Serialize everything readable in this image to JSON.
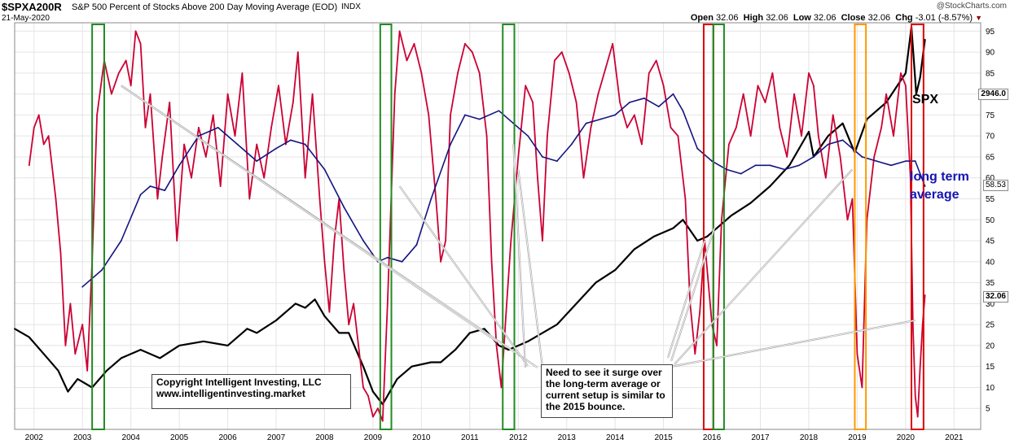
{
  "header": {
    "symbol": "$SPXA200R",
    "description": "S&P 500 Percent of Stocks Above 200 Day Moving Average (EOD)",
    "exchange": "INDX",
    "date": "21-May-2020",
    "brand": "@StockCharts.com",
    "open_label": "Open",
    "open": "32.06",
    "high_label": "High",
    "high": "32.06",
    "low_label": "Low",
    "low": "32.06",
    "close_label": "Close",
    "close": "32.06",
    "chg_label": "Chg",
    "chg": "-3.01 (-8.57%)"
  },
  "annotations": {
    "copyright_line1": "Copyright Intelligent Investing, LLC",
    "copyright_line2": "www.intelligentinvesting.market",
    "note": "Need to see it surge over the long-term average or current setup is similar to the 2015 bounce.",
    "spx_label": "SPX",
    "avg_label_line1": "long term",
    "avg_label_line2": "average"
  },
  "price_tags": {
    "spx": "2946.0",
    "avg": "58.53",
    "pct": "32.06"
  },
  "colors": {
    "pct_line": "#cc0033",
    "spx_line": "#000000",
    "avg_line": "#141480",
    "green_box": "#228b22",
    "red_box": "#dd0000",
    "orange_box": "#ff9900",
    "arrow": "#a8a8a8"
  },
  "chart_data": {
    "type": "line",
    "x_ticks": [
      "2002",
      "2003",
      "2004",
      "2005",
      "2006",
      "2007",
      "2008",
      "2009",
      "2010",
      "2011",
      "2012",
      "2013",
      "2014",
      "2015",
      "2016",
      "2017",
      "2018",
      "2019",
      "2020",
      "2021"
    ],
    "y_ticks": [
      5,
      10,
      15,
      20,
      25,
      30,
      35,
      40,
      45,
      50,
      55,
      60,
      65,
      70,
      75,
      80,
      85,
      90,
      95
    ],
    "ylim": [
      0,
      97
    ],
    "xlim": [
      2001.6,
      2021.55
    ],
    "grid": true,
    "series": [
      {
        "name": "$SPXA200R",
        "x": [
          2001.9,
          2002.0,
          2002.1,
          2002.2,
          2002.3,
          2002.45,
          2002.55,
          2002.65,
          2002.75,
          2002.85,
          2003.0,
          2003.1,
          2003.2,
          2003.3,
          2003.45,
          2003.6,
          2003.75,
          2003.9,
          2004.0,
          2004.1,
          2004.2,
          2004.3,
          2004.4,
          2004.55,
          2004.65,
          2004.8,
          2004.95,
          2005.1,
          2005.25,
          2005.4,
          2005.55,
          2005.7,
          2005.85,
          2006.0,
          2006.15,
          2006.3,
          2006.45,
          2006.6,
          2006.75,
          2006.9,
          2007.05,
          2007.2,
          2007.35,
          2007.45,
          2007.6,
          2007.75,
          2007.9,
          2008.0,
          2008.1,
          2008.2,
          2008.3,
          2008.4,
          2008.5,
          2008.6,
          2008.7,
          2008.8,
          2008.9,
          2009.0,
          2009.1,
          2009.2,
          2009.3,
          2009.45,
          2009.55,
          2009.7,
          2009.85,
          2010.0,
          2010.15,
          2010.3,
          2010.4,
          2010.5,
          2010.6,
          2010.75,
          2010.9,
          2011.05,
          2011.2,
          2011.35,
          2011.45,
          2011.55,
          2011.65,
          2011.75,
          2011.85,
          2012.0,
          2012.15,
          2012.3,
          2012.4,
          2012.5,
          2012.6,
          2012.75,
          2012.9,
          2013.05,
          2013.2,
          2013.35,
          2013.5,
          2013.65,
          2013.8,
          2013.95,
          2014.1,
          2014.25,
          2014.4,
          2014.55,
          2014.7,
          2014.85,
          2015.0,
          2015.15,
          2015.3,
          2015.45,
          2015.55,
          2015.65,
          2015.75,
          2015.85,
          2016.0,
          2016.1,
          2016.2,
          2016.35,
          2016.5,
          2016.65,
          2016.8,
          2016.95,
          2017.1,
          2017.25,
          2017.4,
          2017.55,
          2017.7,
          2017.85,
          2018.0,
          2018.1,
          2018.2,
          2018.35,
          2018.5,
          2018.65,
          2018.8,
          2018.9,
          2019.0,
          2019.1,
          2019.2,
          2019.35,
          2019.5,
          2019.6,
          2019.75,
          2019.9,
          2020.0,
          2020.1,
          2020.15,
          2020.2,
          2020.25,
          2020.3,
          2020.35,
          2020.4
        ],
        "values": [
          63,
          72,
          75,
          68,
          70,
          55,
          42,
          20,
          30,
          18,
          25,
          14,
          40,
          75,
          88,
          80,
          85,
          88,
          82,
          95,
          92,
          72,
          80,
          55,
          65,
          78,
          45,
          68,
          60,
          72,
          65,
          75,
          58,
          80,
          70,
          85,
          55,
          68,
          60,
          72,
          82,
          68,
          78,
          90,
          60,
          80,
          55,
          40,
          28,
          45,
          55,
          38,
          25,
          30,
          20,
          10,
          8,
          3,
          5,
          2,
          30,
          80,
          95,
          88,
          92,
          85,
          75,
          55,
          40,
          45,
          75,
          85,
          92,
          90,
          85,
          70,
          40,
          20,
          10,
          28,
          45,
          65,
          82,
          78,
          60,
          45,
          70,
          88,
          90,
          85,
          78,
          60,
          72,
          80,
          86,
          92,
          78,
          72,
          75,
          68,
          85,
          88,
          82,
          72,
          70,
          55,
          30,
          18,
          28,
          45,
          25,
          20,
          50,
          68,
          72,
          80,
          70,
          82,
          78,
          85,
          72,
          65,
          80,
          70,
          85,
          82,
          70,
          60,
          75,
          65,
          50,
          55,
          18,
          10,
          50,
          65,
          72,
          80,
          70,
          85,
          82,
          60,
          25,
          8,
          3,
          15,
          25,
          32
        ]
      },
      {
        "name": "SPX",
        "x": [
          2001.6,
          2001.9,
          2002.2,
          2002.5,
          2002.7,
          2002.9,
          2003.2,
          2003.5,
          2003.8,
          2004.2,
          2004.6,
          2005.0,
          2005.5,
          2006.0,
          2006.4,
          2006.6,
          2007.0,
          2007.4,
          2007.6,
          2007.8,
          2008.0,
          2008.3,
          2008.5,
          2008.8,
          2009.0,
          2009.2,
          2009.5,
          2009.8,
          2010.2,
          2010.4,
          2010.7,
          2011.0,
          2011.3,
          2011.6,
          2011.8,
          2012.2,
          2012.5,
          2012.8,
          2013.2,
          2013.6,
          2014.0,
          2014.4,
          2014.8,
          2015.2,
          2015.4,
          2015.7,
          2015.9,
          2016.1,
          2016.4,
          2016.8,
          2017.2,
          2017.6,
          2018.0,
          2018.1,
          2018.4,
          2018.7,
          2018.95,
          2019.2,
          2019.6,
          2020.0,
          2020.12,
          2020.22,
          2020.3,
          2020.4
        ],
        "values": [
          24,
          22,
          18,
          14,
          9,
          12,
          10,
          14,
          17,
          19,
          17,
          20,
          21,
          20,
          24,
          23,
          26,
          30,
          29,
          31,
          27,
          23,
          23,
          15,
          9,
          6,
          12,
          15,
          16,
          16,
          19,
          23,
          24,
          20,
          19,
          21,
          23,
          25,
          30,
          35,
          38,
          43,
          46,
          48,
          50,
          45,
          46,
          48,
          51,
          54,
          58,
          63,
          71,
          65,
          70,
          73,
          66,
          74,
          78,
          85,
          96,
          80,
          84,
          93
        ]
      },
      {
        "name": "long term average",
        "x": [
          2003.0,
          2003.4,
          2003.8,
          2004.2,
          2004.4,
          2004.7,
          2005.0,
          2005.4,
          2005.8,
          2006.2,
          2006.6,
          2007.0,
          2007.3,
          2007.6,
          2008.0,
          2008.4,
          2008.8,
          2009.1,
          2009.3,
          2009.6,
          2009.9,
          2010.2,
          2010.6,
          2010.9,
          2011.2,
          2011.6,
          2011.9,
          2012.2,
          2012.5,
          2012.8,
          2013.1,
          2013.4,
          2013.7,
          2014.0,
          2014.3,
          2014.6,
          2014.9,
          2015.2,
          2015.4,
          2015.7,
          2016.0,
          2016.3,
          2016.6,
          2016.9,
          2017.2,
          2017.5,
          2017.8,
          2018.1,
          2018.4,
          2018.7,
          2018.9,
          2019.1,
          2019.4,
          2019.7,
          2020.0,
          2020.2,
          2020.4
        ],
        "values": [
          34,
          38,
          45,
          56,
          58,
          57,
          63,
          70,
          72,
          68,
          64,
          67,
          69,
          68,
          62,
          53,
          45,
          40,
          41,
          40,
          44,
          55,
          68,
          75,
          74,
          76,
          73,
          70,
          65,
          64,
          68,
          73,
          74,
          75,
          78,
          79,
          77,
          80,
          76,
          67,
          64,
          62,
          61,
          63,
          63,
          62,
          63,
          65,
          68,
          69,
          67,
          65,
          64,
          63,
          64,
          64,
          58
        ]
      }
    ],
    "highlight_boxes": [
      {
        "type": "green",
        "x_start": 2003.2,
        "x_end": 2003.45
      },
      {
        "type": "green",
        "x_start": 2009.15,
        "x_end": 2009.38
      },
      {
        "type": "green",
        "x_start": 2011.68,
        "x_end": 2011.92
      },
      {
        "type": "red",
        "x_start": 2015.83,
        "x_end": 2016.03
      },
      {
        "type": "green",
        "x_start": 2016.03,
        "x_end": 2016.25
      },
      {
        "type": "orange",
        "x_start": 2018.95,
        "x_end": 2019.18
      },
      {
        "type": "red",
        "x_start": 2020.12,
        "x_end": 2020.37
      }
    ]
  }
}
